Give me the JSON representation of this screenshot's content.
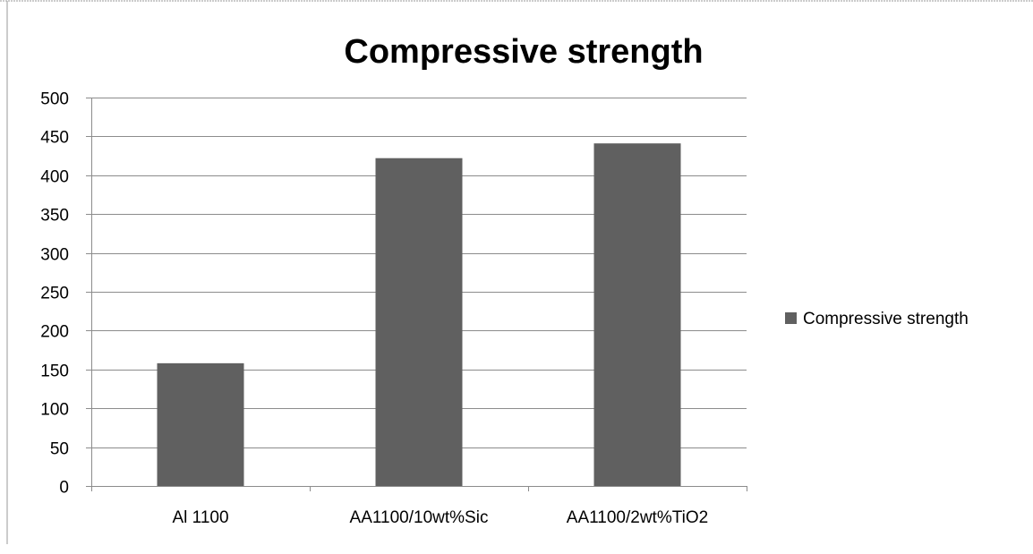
{
  "chart_data": {
    "type": "bar",
    "title": "Compressive strength",
    "categories": [
      "Al 1100",
      "AA1100/10wt%Sic",
      "AA1100/2wt%TiO2"
    ],
    "series": [
      {
        "name": "Compressive strength",
        "values": [
          158,
          422,
          441
        ],
        "color": "#606060"
      }
    ],
    "ylim": [
      0,
      500
    ],
    "yticks": [
      0,
      50,
      100,
      150,
      200,
      250,
      300,
      350,
      400,
      450,
      500
    ],
    "grid": true,
    "legend": "right",
    "colors": {
      "gridline": "#8c8c8c",
      "axis": "#8c8c8c",
      "text": "#000000",
      "frame": "#9a9a9a"
    }
  }
}
